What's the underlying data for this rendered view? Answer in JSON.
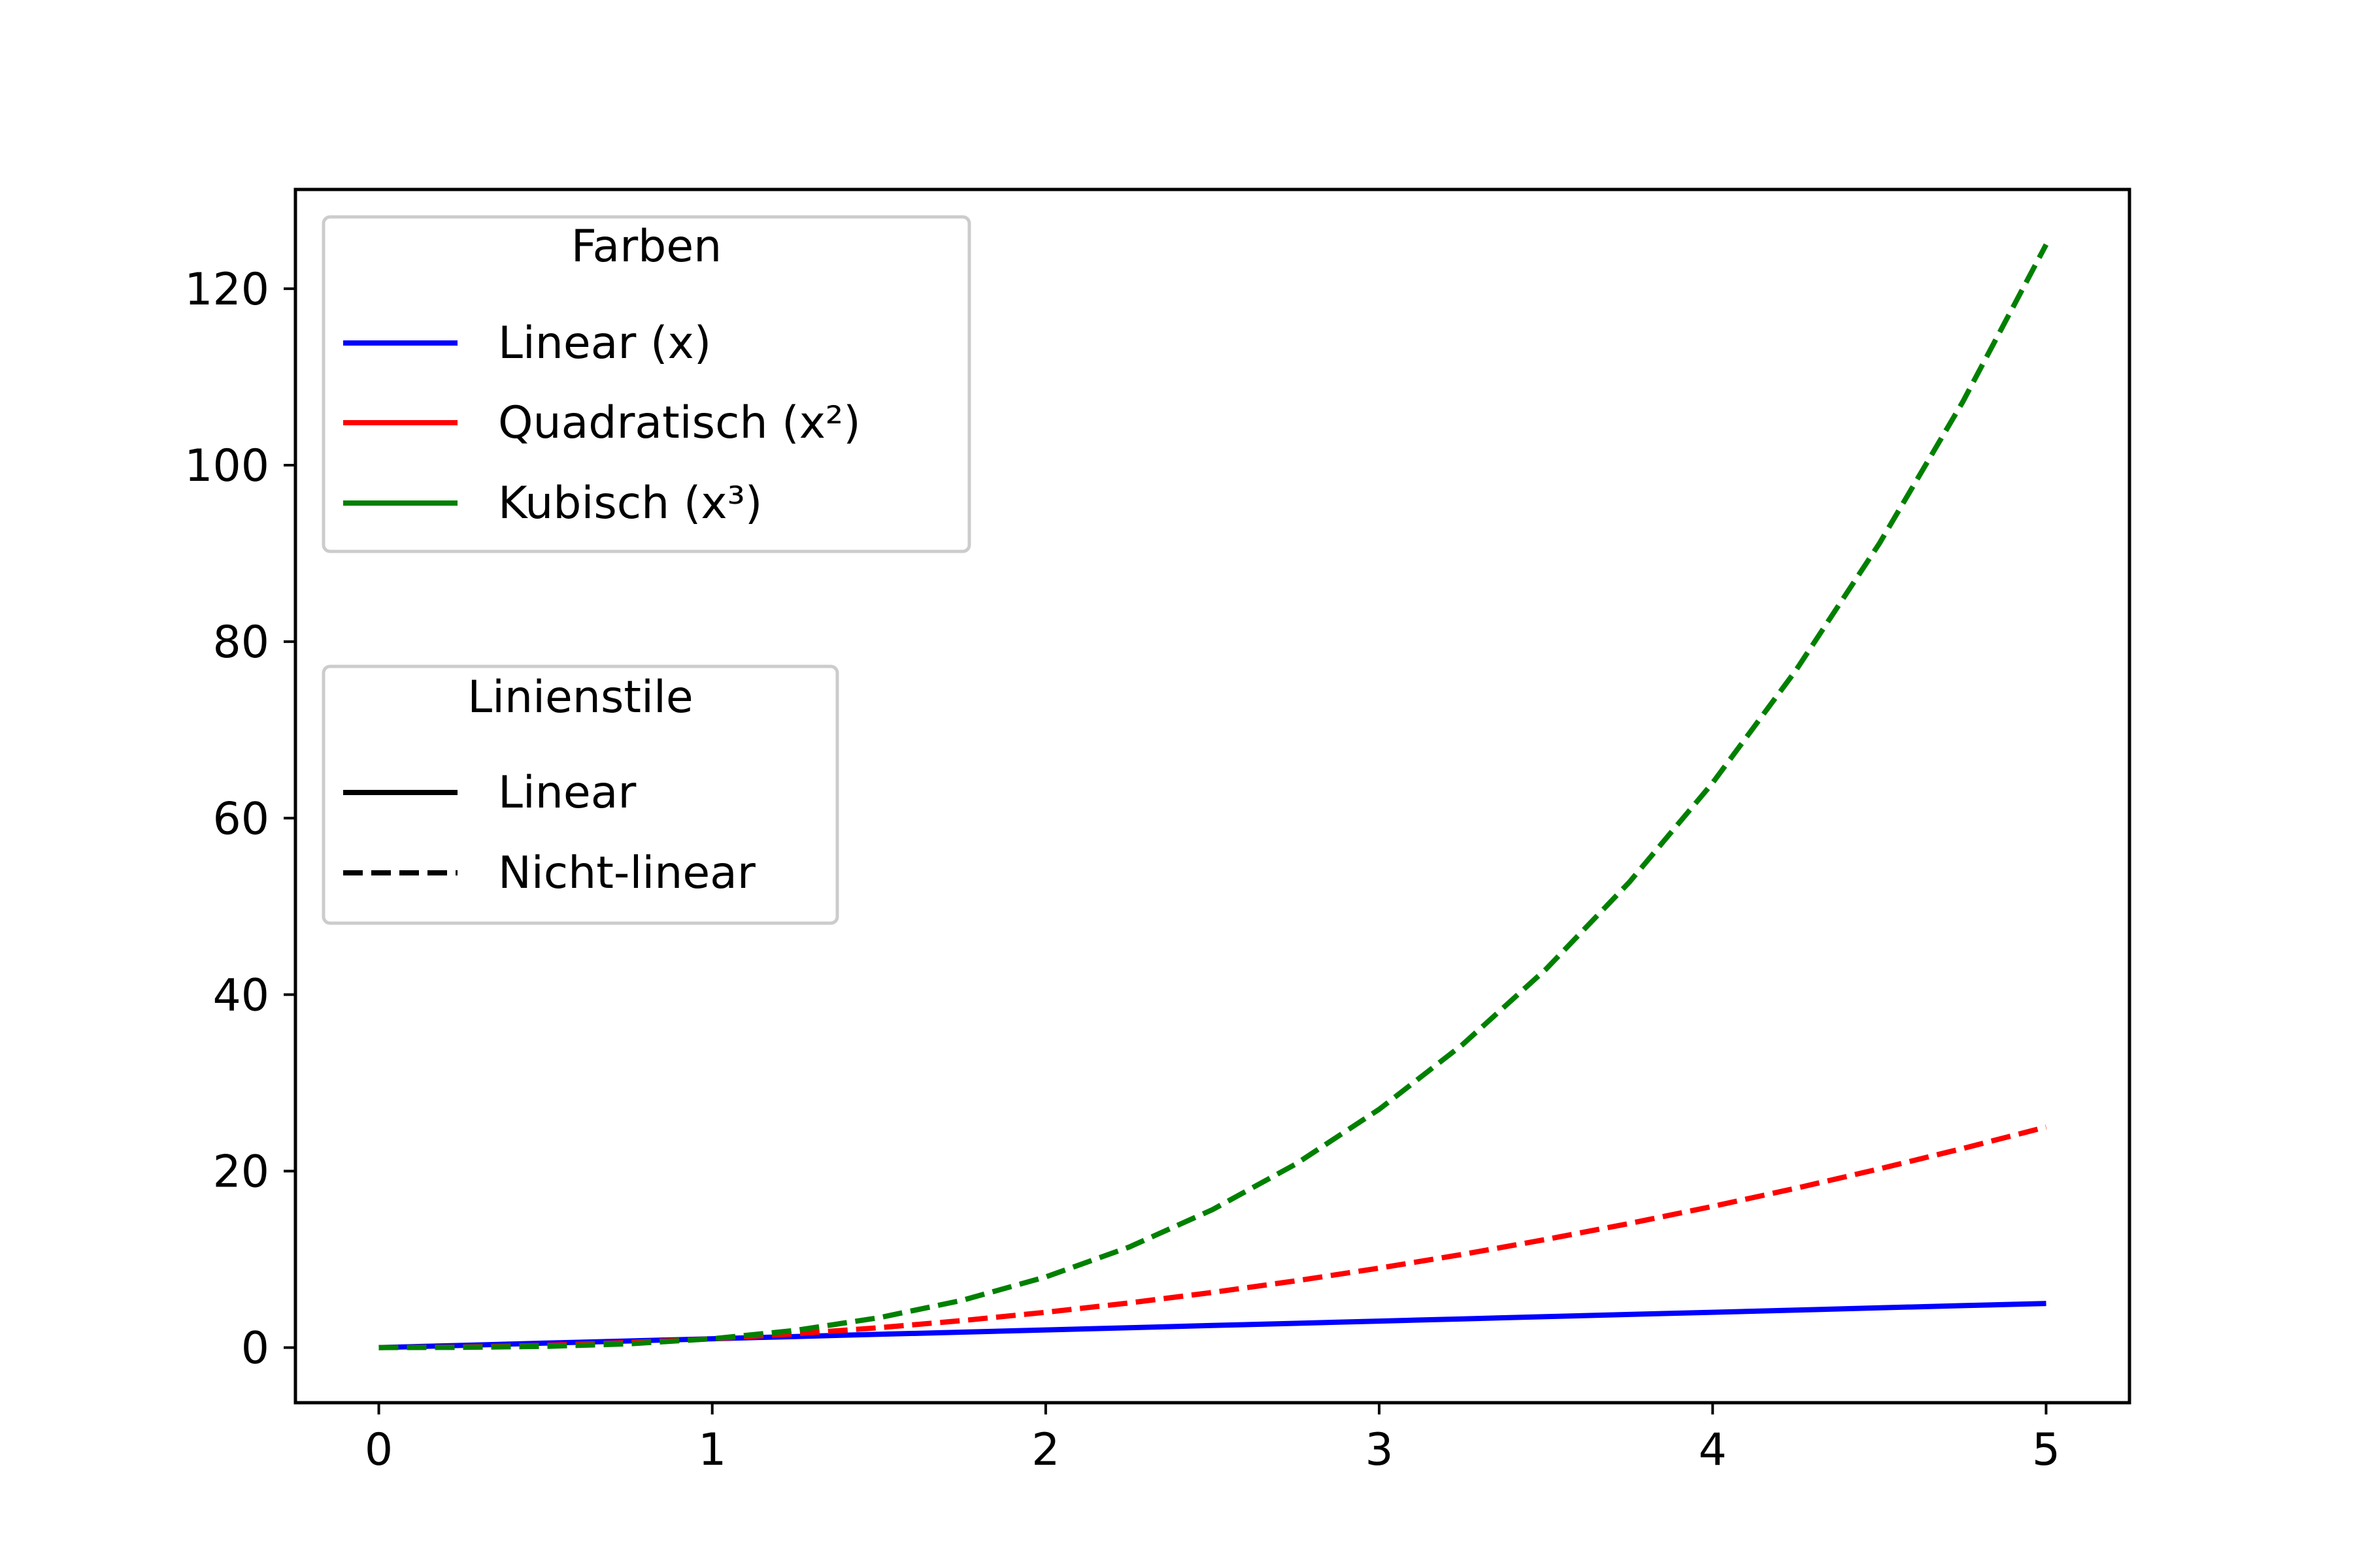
{
  "chart_data": {
    "type": "line",
    "title": "",
    "xlabel": "",
    "ylabel": "",
    "xlim": [
      -0.25,
      5.25
    ],
    "ylim": [
      -6.25,
      131.25
    ],
    "x_ticks": [
      0,
      1,
      2,
      3,
      4,
      5
    ],
    "y_ticks": [
      0,
      20,
      40,
      60,
      80,
      100,
      120
    ],
    "x_tick_labels": [
      "0",
      "1",
      "2",
      "3",
      "4",
      "5"
    ],
    "y_tick_labels": [
      "0",
      "20",
      "40",
      "60",
      "80",
      "100",
      "120"
    ],
    "x": [
      0,
      0.25,
      0.5,
      0.75,
      1,
      1.25,
      1.5,
      1.75,
      2,
      2.25,
      2.5,
      2.75,
      3,
      3.25,
      3.5,
      3.75,
      4,
      4.25,
      4.5,
      4.75,
      5
    ],
    "series": [
      {
        "name": "Linear (x)",
        "color": "#0000ff",
        "dash": "solid",
        "values": [
          0,
          0.25,
          0.5,
          0.75,
          1,
          1.25,
          1.5,
          1.75,
          2,
          2.25,
          2.5,
          2.75,
          3,
          3.25,
          3.5,
          3.75,
          4,
          4.25,
          4.5,
          4.75,
          5
        ]
      },
      {
        "name": "Quadratisch (x²)",
        "color": "#ff0000",
        "dash": "dashed",
        "values": [
          0,
          0.06,
          0.25,
          0.56,
          1,
          1.56,
          2.25,
          3.06,
          4,
          5.06,
          6.25,
          7.56,
          9,
          10.56,
          12.25,
          14.06,
          16,
          18.06,
          20.25,
          22.56,
          25
        ]
      },
      {
        "name": "Kubisch (x³)",
        "color": "#008000",
        "dash": "dashed",
        "values": [
          0,
          0.02,
          0.13,
          0.42,
          1,
          1.95,
          3.38,
          5.36,
          8,
          11.39,
          15.63,
          20.8,
          27,
          34.33,
          42.88,
          52.73,
          64,
          76.77,
          91.13,
          107.17,
          125
        ]
      }
    ],
    "legend": [
      {
        "title": "Farben",
        "placement": "upper-left",
        "entries": [
          {
            "label": "Linear (x)",
            "color": "#0000ff",
            "dash": "solid"
          },
          {
            "label": "Quadratisch (x²)",
            "color": "#ff0000",
            "dash": "solid"
          },
          {
            "label": "Kubisch (x³)",
            "color": "#008000",
            "dash": "solid"
          }
        ]
      },
      {
        "title": "Linienstile",
        "placement": "center-left",
        "entries": [
          {
            "label": "Linear",
            "color": "#000000",
            "dash": "solid"
          },
          {
            "label": "Nicht-linear",
            "color": "#000000",
            "dash": "dashed"
          }
        ]
      }
    ],
    "grid": false
  }
}
